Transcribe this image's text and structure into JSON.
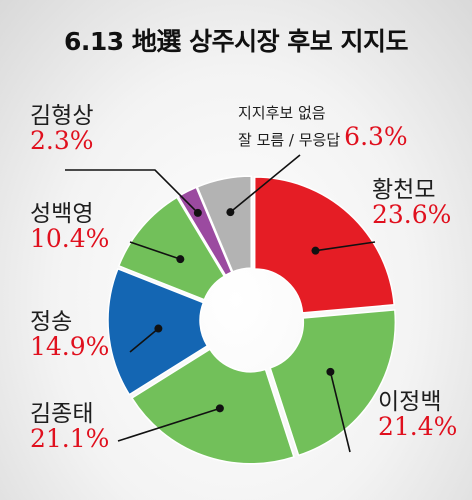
{
  "chart_data": {
    "type": "pie",
    "title": "6.13 地選 상주시장 후보 지지도",
    "slices": [
      {
        "name": "황천모",
        "value": 23.6,
        "display": "23.6%",
        "color": "#e51d25"
      },
      {
        "name": "이정백",
        "value": 21.4,
        "display": "21.4%",
        "color": "#72c05a"
      },
      {
        "name": "김종태",
        "value": 21.1,
        "display": "21.1%",
        "color": "#72c05a"
      },
      {
        "name": "정송",
        "value": 14.9,
        "display": "14.9%",
        "color": "#1466b3"
      },
      {
        "name": "성백영",
        "value": 10.4,
        "display": "10.4%",
        "color": "#72c05a"
      },
      {
        "name": "김형상",
        "value": 2.3,
        "display": "2.3%",
        "color": "#9b4aa0"
      },
      {
        "name_lines": [
          "지지후보 없음",
          "잘 모름 / 무응답"
        ],
        "value": 6.3,
        "display": "6.3%",
        "color": "#b3b3b3"
      }
    ]
  }
}
